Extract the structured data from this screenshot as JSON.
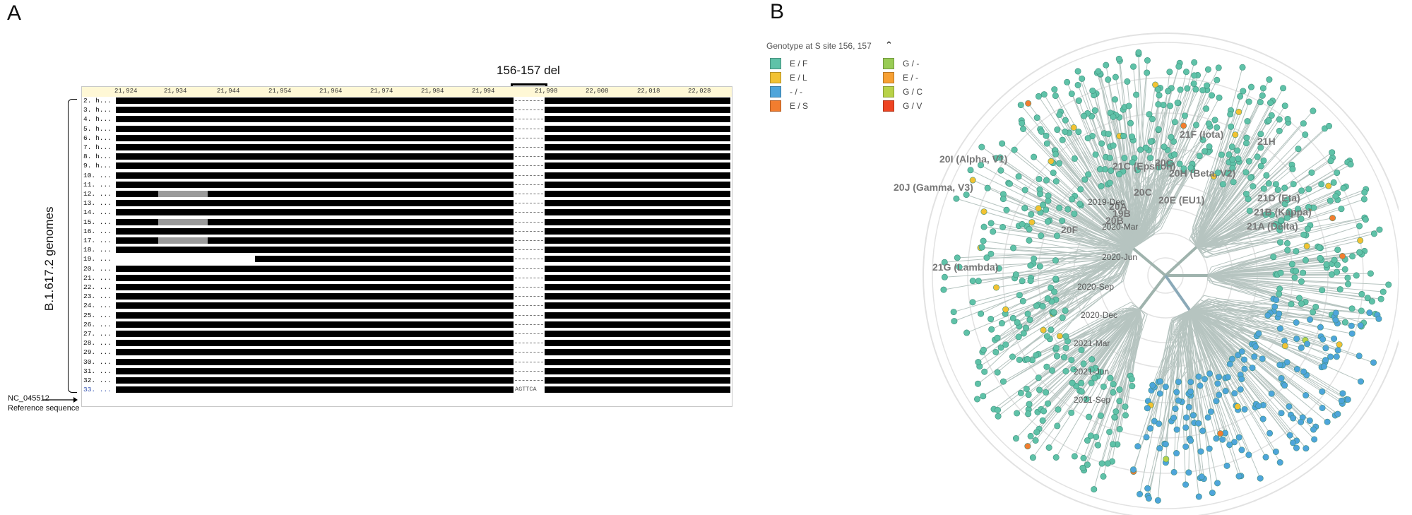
{
  "panelA": {
    "letter": "A",
    "deletion_label": "156-157 del",
    "ruler_ticks": [
      "21,924",
      "21,934",
      "21,944",
      "21,954",
      "21,964",
      "21,974",
      "21,984",
      "21,994",
      "21,998",
      "22,008",
      "22,018",
      "22,028"
    ],
    "row_names": [
      "2. h...",
      "3. h...",
      "4. h...",
      "5. h...",
      "6. h...",
      "7. h...",
      "8. h...",
      "9. h...",
      "10. ...",
      "11. ...",
      "12. ...",
      "13. ...",
      "14. ...",
      "15. ...",
      "16. ...",
      "17. ...",
      "18. ...",
      "19. ...",
      "20. ...",
      "21. ...",
      "22. ...",
      "23. ...",
      "24. ...",
      "25. ...",
      "26. ...",
      "27. ...",
      "28. ...",
      "29. ...",
      "30. ...",
      "31. ...",
      "32. ...",
      "33. ..."
    ],
    "ref_row_name": "33. ...",
    "ref_gap_seq": "AGTTCA",
    "group_label": "B.1.617.2 genomes",
    "ref_accession": "NC_045512",
    "ref_description": "Reference sequence"
  },
  "panelB": {
    "letter": "B",
    "legend_title": "Genotype at S site 156, 157",
    "legend": [
      {
        "label": "E / F",
        "color": "#5fc2a8"
      },
      {
        "label": "E / L",
        "color": "#f2c233"
      },
      {
        "label": "- / -",
        "color": "#4ea5db"
      },
      {
        "label": "E / S",
        "color": "#f27d2f"
      },
      {
        "label": "G / -",
        "color": "#99cc55"
      },
      {
        "label": "E / -",
        "color": "#f7a033"
      },
      {
        "label": "G / C",
        "color": "#b8d248"
      },
      {
        "label": "G / V",
        "color": "#ee4422"
      }
    ],
    "clade_labels": [
      "21F (Iota)",
      "21H",
      "20I (Alpha, V1)",
      "21C (Epsilon)",
      "20G",
      "20H (Beta, V2)",
      "20J (Gamma, V3)",
      "20C",
      "20E (EU1)",
      "21D (Eta)",
      "20A",
      "19B",
      "21B (Kappa)",
      "20B",
      "21A (Delta)",
      "20F",
      "21G (Lambda)"
    ],
    "time_labels": [
      "2019-Dec",
      "2020-Mar",
      "2020-Jun",
      "2020-Sep",
      "2020-Dec",
      "2021-Mar",
      "2021-Jun",
      "2021-Sep"
    ]
  }
}
